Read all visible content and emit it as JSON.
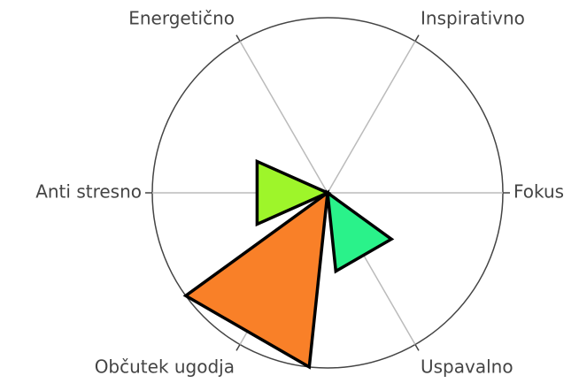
{
  "chart_data": {
    "type": "polar-wedge",
    "categories": [
      "Fokus",
      "Inspirativno",
      "Energetično",
      "Anti stresno",
      "Občutek ugodja",
      "Uspavalno"
    ],
    "values": [
      0,
      0,
      0,
      44,
      100,
      45
    ],
    "colors": [
      null,
      null,
      null,
      "#9ef52a",
      "#f98028",
      "#2af28a"
    ],
    "rlim": [
      0,
      100
    ],
    "grid": true
  }
}
